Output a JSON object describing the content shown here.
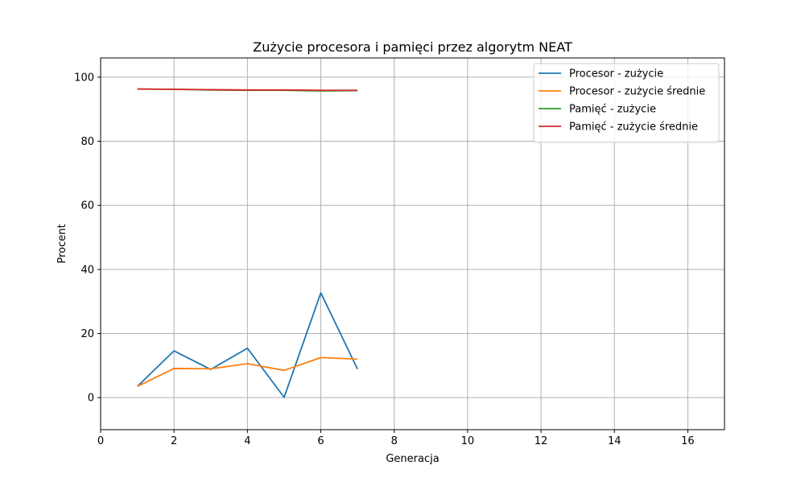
{
  "chart_data": {
    "type": "line",
    "title": "Zużycie procesora i pamięci przez algorytm NEAT",
    "xlabel": "Generacja",
    "ylabel": "Procent",
    "xlim": [
      0,
      17
    ],
    "ylim": [
      -10,
      106
    ],
    "xticks": [
      0,
      2,
      4,
      6,
      8,
      10,
      12,
      14,
      16
    ],
    "yticks": [
      0,
      20,
      40,
      60,
      80,
      100
    ],
    "grid": true,
    "legend_position": "top-right",
    "x": [
      1,
      2,
      3,
      4,
      5,
      6,
      7
    ],
    "series": [
      {
        "name": "Procesor - zużycie",
        "color": "#1f77b4",
        "values": [
          3.5,
          14.6,
          8.8,
          15.4,
          0.1,
          32.7,
          8.9
        ]
      },
      {
        "name": "Procesor - zużycie średnie",
        "color": "#ff7f0e",
        "values": [
          3.5,
          9.1,
          9.0,
          10.6,
          8.5,
          12.5,
          12.0
        ]
      },
      {
        "name": "Pamięć - zużycie",
        "color": "#2ca02c",
        "values": [
          96.3,
          96.2,
          96.0,
          95.9,
          95.9,
          95.7,
          95.8
        ]
      },
      {
        "name": "Pamięć - zużycie średnie",
        "color": "#d62728",
        "values": [
          96.3,
          96.2,
          96.1,
          96.0,
          96.0,
          95.9,
          95.9
        ]
      }
    ]
  }
}
